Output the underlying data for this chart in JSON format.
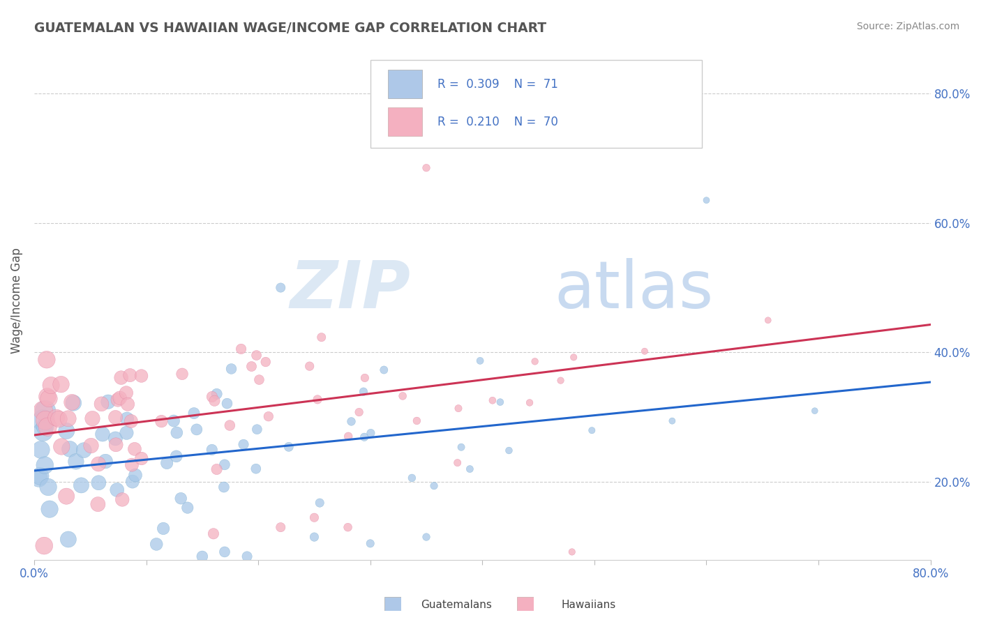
{
  "title": "GUATEMALAN VS HAWAIIAN WAGE/INCOME GAP CORRELATION CHART",
  "source": "Source: ZipAtlas.com",
  "ylabel": "Wage/Income Gap",
  "xlim": [
    0.0,
    0.8
  ],
  "ylim": [
    0.08,
    0.88
  ],
  "xtick_positions": [
    0.0,
    0.1,
    0.2,
    0.3,
    0.4,
    0.5,
    0.6,
    0.7,
    0.8
  ],
  "xticklabels": [
    "0.0%",
    "",
    "",
    "",
    "",
    "",
    "",
    "",
    "80.0%"
  ],
  "ytick_positions": [
    0.2,
    0.4,
    0.6,
    0.8
  ],
  "ytick_labels": [
    "20.0%",
    "40.0%",
    "60.0%",
    "80.0%"
  ],
  "blue_color": "#a8c8e8",
  "blue_edge_color": "#7aaed0",
  "pink_color": "#f4b0c0",
  "pink_edge_color": "#e080a0",
  "blue_line_color": "#2266cc",
  "pink_line_color": "#cc3355",
  "legend_text_color": "#4472c4",
  "label1": "Guatemalans",
  "label2": "Hawaiians",
  "title_color": "#555555",
  "source_color": "#888888",
  "ylabel_color": "#555555",
  "tick_color": "#4472c4",
  "grid_color": "#cccccc",
  "watermark_zip_color": "#dce8f4",
  "watermark_atlas_color": "#c8daf0"
}
